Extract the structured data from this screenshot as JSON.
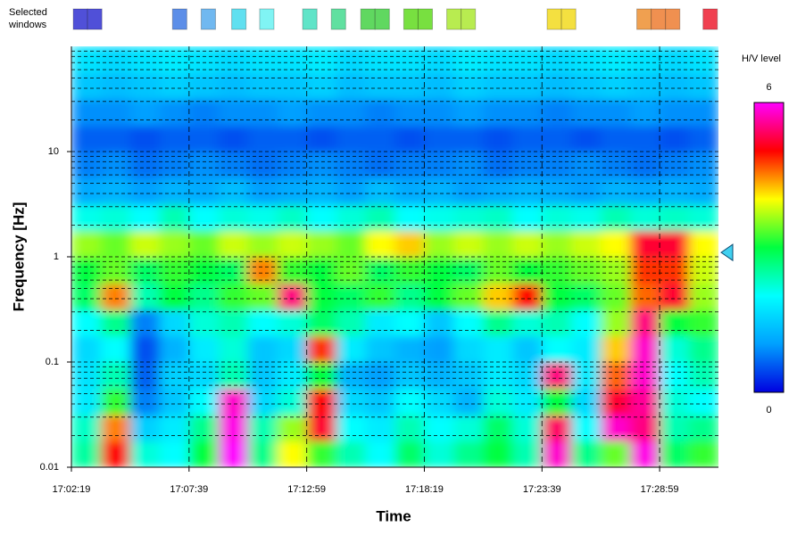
{
  "chart_data": {
    "type": "heatmap",
    "x_label": "Time",
    "y_label": "Frequency [Hz]",
    "log_y": true,
    "grid": true,
    "xlim": [
      61339,
      63099
    ],
    "ylim": [
      0.01,
      100
    ],
    "xticks": [
      {
        "value": 61339,
        "label": "17:02:19"
      },
      {
        "value": 61659,
        "label": "17:07:39"
      },
      {
        "value": 61979,
        "label": "17:12:59"
      },
      {
        "value": 62299,
        "label": "17:18:19"
      },
      {
        "value": 62619,
        "label": "17:23:39"
      },
      {
        "value": 62939,
        "label": "17:28:59"
      }
    ],
    "yticks": [
      0.01,
      0.1,
      1,
      10
    ],
    "y_minor_grid": [
      0.02,
      0.03,
      0.04,
      0.05,
      0.06,
      0.07,
      0.08,
      0.09,
      0.2,
      0.3,
      0.4,
      0.5,
      0.6,
      0.7,
      0.8,
      0.9,
      2,
      3,
      4,
      5,
      6,
      7,
      8,
      9,
      20,
      30,
      40,
      50,
      60,
      70,
      80,
      90
    ],
    "x_edges": [
      61339,
      61419,
      61499,
      61579,
      61659,
      61739,
      61819,
      61899,
      61979,
      62059,
      62139,
      62219,
      62299,
      62379,
      62459,
      62539,
      62619,
      62699,
      62779,
      62859,
      62939,
      63019,
      63099
    ],
    "y_edges": [
      0.01,
      0.0178,
      0.0316,
      0.0562,
      0.1,
      0.178,
      0.316,
      0.562,
      1,
      1.78,
      3.16,
      5.62,
      10,
      17.8,
      31.6,
      56.2,
      100
    ],
    "values": [
      [
        2.5,
        5.0,
        2.2,
        2.0,
        3.0,
        6.0,
        2.6,
        4.0,
        3.2,
        2.4,
        2.0,
        2.8,
        2.2,
        2.6,
        3.0,
        2.4,
        5.8,
        2.6,
        3.4,
        5.9,
        2.8,
        3.2
      ],
      [
        2.3,
        4.5,
        1.5,
        1.8,
        2.6,
        5.9,
        2.4,
        3.6,
        5.2,
        2.0,
        1.8,
        2.4,
        2.0,
        2.2,
        2.8,
        2.2,
        5.4,
        2.0,
        5.8,
        5.5,
        2.4,
        2.6
      ],
      [
        1.8,
        3.2,
        0.8,
        1.4,
        2.0,
        5.8,
        1.6,
        2.2,
        5.0,
        1.6,
        1.4,
        2.0,
        1.6,
        1.2,
        2.2,
        1.8,
        3.0,
        1.6,
        5.2,
        5.6,
        2.2,
        2.0
      ],
      [
        1.7,
        2.4,
        0.6,
        1.5,
        1.6,
        2.4,
        1.4,
        1.8,
        3.0,
        1.2,
        1.0,
        1.4,
        1.2,
        1.4,
        1.8,
        1.6,
        5.5,
        1.8,
        4.6,
        5.8,
        2.0,
        2.4
      ],
      [
        1.6,
        2.0,
        0.5,
        1.2,
        1.8,
        2.2,
        1.4,
        1.6,
        4.8,
        1.8,
        1.4,
        1.2,
        1.0,
        1.6,
        1.8,
        1.4,
        2.0,
        1.8,
        4.2,
        5.8,
        2.2,
        2.6
      ],
      [
        2.0,
        2.6,
        0.8,
        1.6,
        2.2,
        2.4,
        2.0,
        2.2,
        2.8,
        2.4,
        1.8,
        2.0,
        1.4,
        2.0,
        2.6,
        2.2,
        2.4,
        2.0,
        3.6,
        5.5,
        3.0,
        3.2
      ],
      [
        2.8,
        4.5,
        2.4,
        3.0,
        2.6,
        3.2,
        3.4,
        5.5,
        3.0,
        2.8,
        3.2,
        2.6,
        3.0,
        3.4,
        4.2,
        5.0,
        3.0,
        2.8,
        3.4,
        4.6,
        5.2,
        3.6
      ],
      [
        3.0,
        3.4,
        2.8,
        3.2,
        3.0,
        2.8,
        4.5,
        3.2,
        3.0,
        3.4,
        2.8,
        3.2,
        3.0,
        2.8,
        3.4,
        3.0,
        3.2,
        3.4,
        3.6,
        4.8,
        4.8,
        3.8
      ],
      [
        3.6,
        3.4,
        3.8,
        3.6,
        3.4,
        3.8,
        3.6,
        3.8,
        3.6,
        3.4,
        4.0,
        4.2,
        3.6,
        3.8,
        3.6,
        3.8,
        3.6,
        3.8,
        4.0,
        5.2,
        5.2,
        4.0
      ],
      [
        2.1,
        2.2,
        2.0,
        2.4,
        2.0,
        2.2,
        2.1,
        2.3,
        2.0,
        2.2,
        2.4,
        2.0,
        2.1,
        2.2,
        2.3,
        2.0,
        2.2,
        2.1,
        2.4,
        2.2,
        2.3,
        2.2
      ],
      [
        1.1,
        1.2,
        1.0,
        1.2,
        1.1,
        1.3,
        1.0,
        1.1,
        1.2,
        1.0,
        1.3,
        1.1,
        1.2,
        1.0,
        1.1,
        1.2,
        1.1,
        1.0,
        1.2,
        1.1,
        1.2,
        1.1
      ],
      [
        0.8,
        0.9,
        0.7,
        0.8,
        0.9,
        0.8,
        0.7,
        0.8,
        0.9,
        0.8,
        0.7,
        0.8,
        0.8,
        0.9,
        0.7,
        0.8,
        0.8,
        0.9,
        0.8,
        0.7,
        0.8,
        0.9
      ],
      [
        0.6,
        0.6,
        0.5,
        0.6,
        0.6,
        0.5,
        0.6,
        0.6,
        0.5,
        0.6,
        0.6,
        0.5,
        0.6,
        0.6,
        0.5,
        0.6,
        0.6,
        0.5,
        0.6,
        0.6,
        0.5,
        0.6
      ],
      [
        0.9,
        0.9,
        1.0,
        0.9,
        0.8,
        0.9,
        0.9,
        1.0,
        0.9,
        0.9,
        0.8,
        0.9,
        0.9,
        1.0,
        0.9,
        0.9,
        0.8,
        0.9,
        0.9,
        1.0,
        0.9,
        0.9
      ],
      [
        1.4,
        1.3,
        1.4,
        1.5,
        1.4,
        1.3,
        1.4,
        1.4,
        1.5,
        1.3,
        1.4,
        1.4,
        1.3,
        1.5,
        1.4,
        1.4,
        1.3,
        1.4,
        1.5,
        1.4,
        1.3,
        1.4
      ],
      [
        1.7,
        1.6,
        1.7,
        1.8,
        1.7,
        1.6,
        1.7,
        1.7,
        1.8,
        1.6,
        1.7,
        1.7,
        1.6,
        1.8,
        1.7,
        1.7,
        1.6,
        1.7,
        1.8,
        1.7,
        1.6,
        1.7
      ]
    ],
    "colorbar": {
      "title": "H/V level",
      "ticks": [
        0,
        6
      ],
      "lim": [
        0,
        6
      ],
      "colors": [
        "#0000e0",
        "#00a0ff",
        "#00ffff",
        "#00ff40",
        "#ffff00",
        "#ff0000",
        "#ff00ff"
      ]
    },
    "peak_frequency": 1.1,
    "peak_color": "#40d0f0",
    "windows_label": [
      "Selected",
      "windows"
    ],
    "window_length": 39,
    "windows": [
      {
        "start": 61344,
        "color": "#5050d8"
      },
      {
        "start": 61383,
        "color": "#5050d8"
      },
      {
        "start": 61614,
        "color": "#5c8ee8"
      },
      {
        "start": 61692,
        "color": "#70b8f0"
      },
      {
        "start": 61775,
        "color": "#60e0f0"
      },
      {
        "start": 61851,
        "color": "#80f4f4"
      },
      {
        "start": 61968,
        "color": "#60e4c8"
      },
      {
        "start": 62046,
        "color": "#60e0a0"
      },
      {
        "start": 62126,
        "color": "#60d860"
      },
      {
        "start": 62165,
        "color": "#60d860"
      },
      {
        "start": 62243,
        "color": "#78e040"
      },
      {
        "start": 62282,
        "color": "#78e040"
      },
      {
        "start": 62360,
        "color": "#b8ec50"
      },
      {
        "start": 62399,
        "color": "#b8ec50"
      },
      {
        "start": 62633,
        "color": "#f4e040"
      },
      {
        "start": 62672,
        "color": "#f4e040"
      },
      {
        "start": 62877,
        "color": "#f0a050"
      },
      {
        "start": 62916,
        "color": "#f09050"
      },
      {
        "start": 62955,
        "color": "#f09050"
      },
      {
        "start": 63057,
        "color": "#f04050"
      }
    ]
  }
}
